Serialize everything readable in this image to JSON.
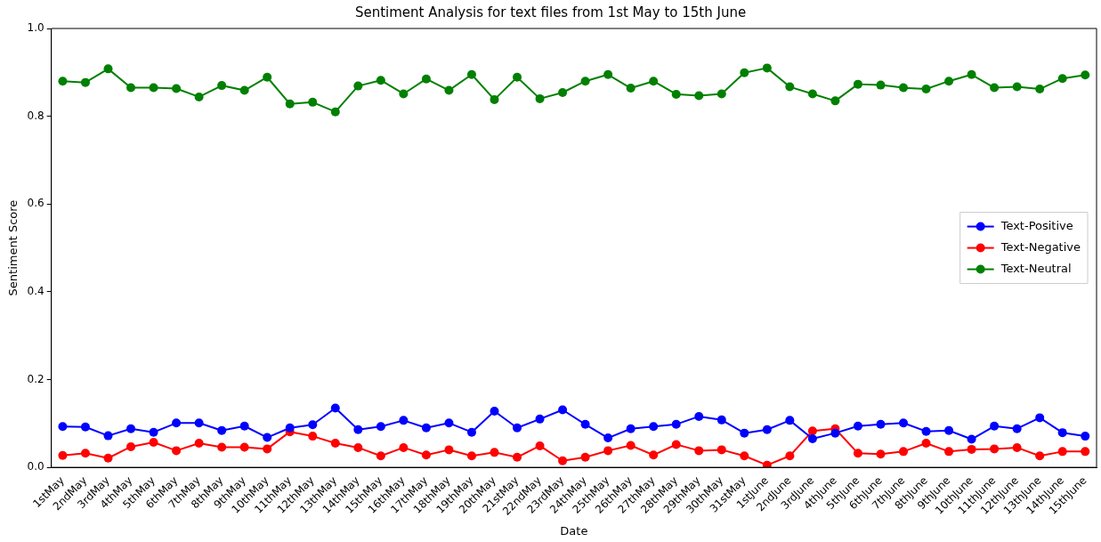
{
  "chart_data": {
    "type": "line",
    "title": "Sentiment Analysis for text files from 1st May to 15th June",
    "xlabel": "Date",
    "ylabel": "Sentiment Score",
    "categories": [
      "1stMay",
      "2ndMay",
      "3rdMay",
      "4thMay",
      "5thMay",
      "6thMay",
      "7thMay",
      "8thMay",
      "9thMay",
      "10thMay",
      "11thMay",
      "12thMay",
      "13thMay",
      "14thMay",
      "15thMay",
      "16thMay",
      "17thMay",
      "18thMay",
      "19thMay",
      "20thMay",
      "21stMay",
      "22ndMay",
      "23rdMay",
      "24thMay",
      "25thMay",
      "26thMay",
      "27thMay",
      "28thMay",
      "29thMay",
      "30thMay",
      "31stMay",
      "1stJune",
      "2ndJune",
      "3rdJune",
      "4thJune",
      "5thJune",
      "6thJune",
      "7thJune",
      "8thJune",
      "9thJune",
      "10thJune",
      "11thJune",
      "12thJune",
      "13thJune",
      "14thJune",
      "15thJune"
    ],
    "series": [
      {
        "name": "Text-Positive",
        "color": "#0000ff",
        "values": [
          0.093,
          0.092,
          0.072,
          0.088,
          0.08,
          0.101,
          0.101,
          0.084,
          0.094,
          0.068,
          0.09,
          0.097,
          0.135,
          0.086,
          0.093,
          0.107,
          0.09,
          0.101,
          0.08,
          0.128,
          0.09,
          0.11,
          0.131,
          0.098,
          0.067,
          0.088,
          0.093,
          0.098,
          0.116,
          0.108,
          0.078,
          0.086,
          0.107,
          0.065,
          0.078,
          0.094,
          0.098,
          0.101,
          0.082,
          0.084,
          0.064,
          0.094,
          0.088,
          0.113,
          0.079,
          0.071
        ]
      },
      {
        "name": "Text-Negative",
        "color": "#ff0000",
        "values": [
          0.027,
          0.032,
          0.021,
          0.047,
          0.057,
          0.038,
          0.055,
          0.046,
          0.046,
          0.042,
          0.081,
          0.071,
          0.055,
          0.045,
          0.026,
          0.045,
          0.028,
          0.04,
          0.026,
          0.034,
          0.023,
          0.049,
          0.015,
          0.023,
          0.038,
          0.05,
          0.028,
          0.052,
          0.038,
          0.04,
          0.026,
          0.005,
          0.026,
          0.083,
          0.088,
          0.032,
          0.03,
          0.036,
          0.055,
          0.036,
          0.041,
          0.042,
          0.045,
          0.026,
          0.036,
          0.036
        ]
      },
      {
        "name": "Text-Neutral",
        "color": "#008000",
        "values": [
          0.88,
          0.877,
          0.908,
          0.865,
          0.865,
          0.863,
          0.844,
          0.87,
          0.859,
          0.889,
          0.828,
          0.832,
          0.81,
          0.869,
          0.882,
          0.851,
          0.885,
          0.859,
          0.895,
          0.838,
          0.889,
          0.84,
          0.854,
          0.88,
          0.895,
          0.864,
          0.88,
          0.85,
          0.847,
          0.851,
          0.899,
          0.91,
          0.867,
          0.851,
          0.835,
          0.873,
          0.871,
          0.865,
          0.862,
          0.88,
          0.895,
          0.865,
          0.867,
          0.862,
          0.886,
          0.894
        ]
      }
    ],
    "ylim": [
      0,
      1
    ],
    "yticks": [
      {
        "value": 0,
        "label": "0.0"
      },
      {
        "value": 0.2,
        "label": "0.2"
      },
      {
        "value": 0.4,
        "label": "0.4"
      },
      {
        "value": 0.6,
        "label": "0.6"
      },
      {
        "value": 0.8,
        "label": "0.8"
      },
      {
        "value": 1,
        "label": "1.0"
      }
    ],
    "grid": false,
    "legend": "right",
    "marker": "circle",
    "line_style": "solid"
  }
}
